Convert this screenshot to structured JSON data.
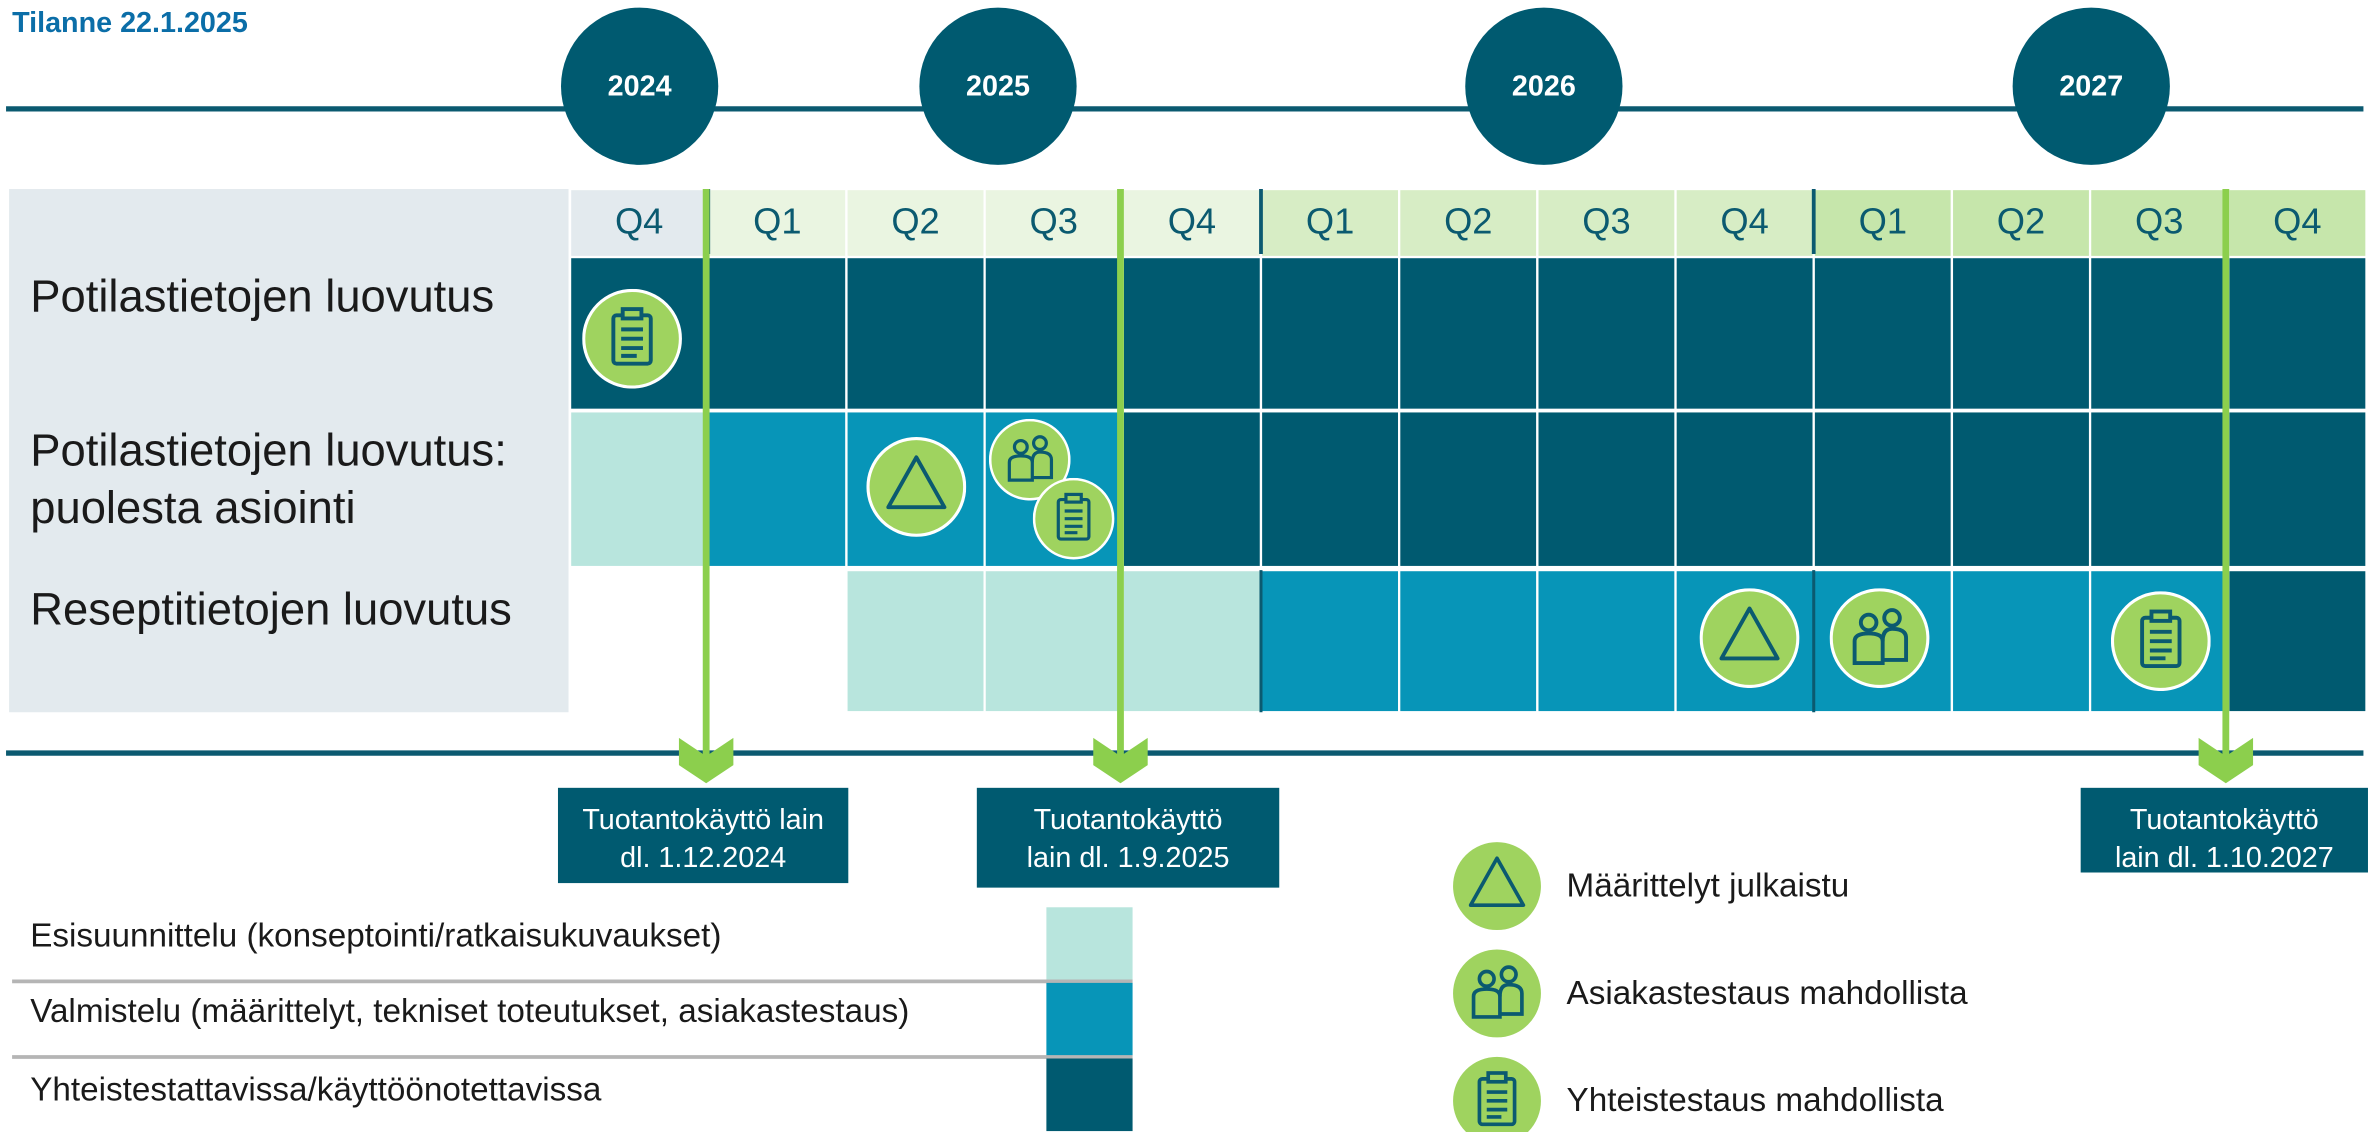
{
  "title": "Tilanne 22.1.2025",
  "years": [
    "2024",
    "2025",
    "2026",
    "2027"
  ],
  "quarters": [
    "Q4",
    "Q1",
    "Q2",
    "Q3",
    "Q4",
    "Q1",
    "Q2",
    "Q3",
    "Q4",
    "Q1",
    "Q2",
    "Q3",
    "Q4"
  ],
  "rows": [
    {
      "label": [
        "Potilastietojen luovutus"
      ]
    },
    {
      "label": [
        "Potilastietojen luovutus:",
        "puolesta asiointi"
      ]
    },
    {
      "label": [
        "Reseptitietojen luovutus"
      ]
    }
  ],
  "milestones": [
    {
      "lines": [
        "Tuotantokäyttö lain",
        "dl. 1.12.2024"
      ]
    },
    {
      "lines": [
        "Tuotantokäyttö",
        "lain dl. 1.9.2025"
      ]
    },
    {
      "lines": [
        "Tuotantokäyttö",
        "lain dl. 1.10.2027"
      ]
    }
  ],
  "phase_legend": [
    "Esisuunnittelu (konseptointi/ratkaisukuvaukset)",
    "Valmistelu (määrittelyt, tekniset toteutukset, asiakastestaus)",
    "Yhteistestattavissa/käyttöönotettavissa"
  ],
  "icon_legend": [
    "Määrittelyt julkaistu",
    "Asiakastestaus mahdollista",
    "Yhteistestaus mahdollista"
  ]
}
